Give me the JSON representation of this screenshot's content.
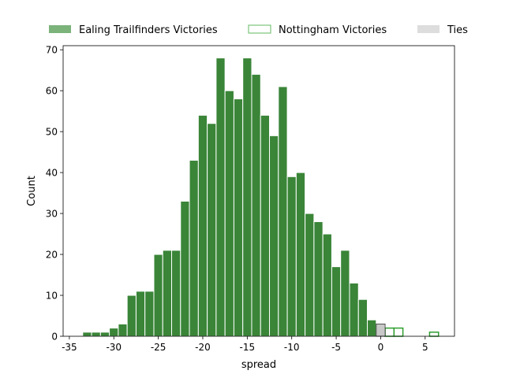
{
  "chart_data": {
    "type": "bar",
    "xlabel": "spread",
    "ylabel": "Count",
    "xlim": [
      -35.7,
      8.3
    ],
    "ylim": [
      0,
      71
    ],
    "x_ticks": [
      -35,
      -30,
      -25,
      -20,
      -15,
      -10,
      -5,
      0,
      5
    ],
    "y_ticks": [
      0,
      10,
      20,
      30,
      40,
      50,
      60,
      70
    ],
    "grid": false,
    "legend_position": "top, horizontal above plot",
    "bin_width": 1,
    "series": [
      {
        "name": "Ealing Trailfinders Victories",
        "style": "filled",
        "color": "#3a8538",
        "legend_color": "#7bb37a",
        "bins": [
          {
            "x": -33,
            "count": 1
          },
          {
            "x": -32,
            "count": 1
          },
          {
            "x": -31,
            "count": 1
          },
          {
            "x": -30,
            "count": 2
          },
          {
            "x": -29,
            "count": 3
          },
          {
            "x": -28,
            "count": 10
          },
          {
            "x": -27,
            "count": 11
          },
          {
            "x": -26,
            "count": 11
          },
          {
            "x": -25,
            "count": 20
          },
          {
            "x": -24,
            "count": 21
          },
          {
            "x": -23,
            "count": 21
          },
          {
            "x": -22,
            "count": 33
          },
          {
            "x": -21,
            "count": 43
          },
          {
            "x": -20,
            "count": 54
          },
          {
            "x": -19,
            "count": 52
          },
          {
            "x": -18,
            "count": 68
          },
          {
            "x": -17,
            "count": 60
          },
          {
            "x": -16,
            "count": 58
          },
          {
            "x": -15,
            "count": 68
          },
          {
            "x": -14,
            "count": 64
          },
          {
            "x": -13,
            "count": 54
          },
          {
            "x": -12,
            "count": 49
          },
          {
            "x": -11,
            "count": 61
          },
          {
            "x": -10,
            "count": 39
          },
          {
            "x": -9,
            "count": 40
          },
          {
            "x": -8,
            "count": 30
          },
          {
            "x": -7,
            "count": 28
          },
          {
            "x": -6,
            "count": 25
          },
          {
            "x": -5,
            "count": 17
          },
          {
            "x": -4,
            "count": 21
          },
          {
            "x": -3,
            "count": 13
          },
          {
            "x": -2,
            "count": 9
          },
          {
            "x": -1,
            "count": 4
          }
        ]
      },
      {
        "name": "Nottingham Victories",
        "style": "outline",
        "color": "#2e9e2e",
        "legend_color": "#7bc47a",
        "bins": [
          {
            "x": 1,
            "count": 2
          },
          {
            "x": 2,
            "count": 2
          },
          {
            "x": 6,
            "count": 1
          }
        ]
      },
      {
        "name": "Ties",
        "style": "filled",
        "color": "#c8c8c8",
        "legend_color": "#dddddd",
        "bins": [
          {
            "x": 0,
            "count": 3
          }
        ]
      }
    ]
  }
}
